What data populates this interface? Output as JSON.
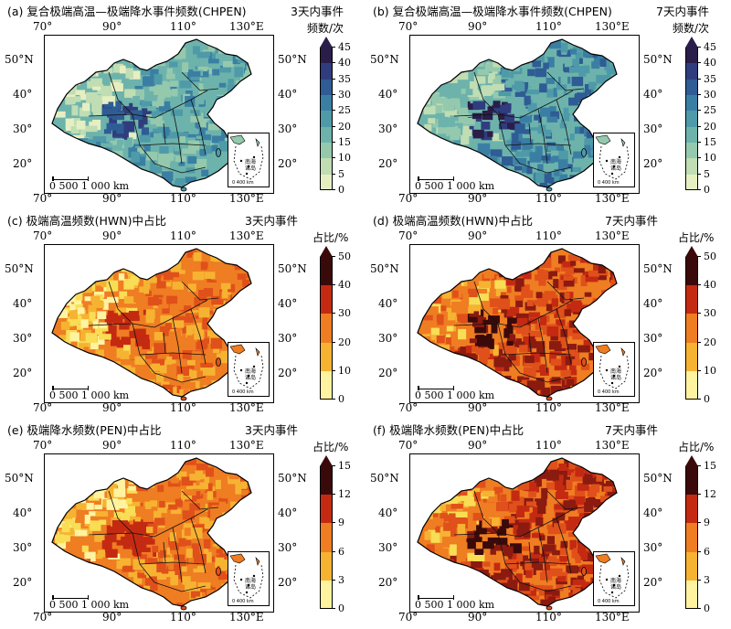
{
  "panels": [
    {
      "id": "a",
      "title": "(a) 复合极端高温—极端降水事件频数(CHPEN)",
      "event": "3天内事件",
      "unit": "频数/次",
      "ticks": [
        "45",
        "40",
        "35",
        "30",
        "25",
        "20",
        "15",
        "10",
        "5",
        "0"
      ],
      "scheme": "blue",
      "variant": 1
    },
    {
      "id": "b",
      "title": "(b) 复合极端高温—极端降水事件频数(CHPEN)",
      "event": "7天内事件",
      "unit": "频数/次",
      "ticks": [
        "45",
        "40",
        "35",
        "30",
        "25",
        "20",
        "15",
        "10",
        "5",
        "0"
      ],
      "scheme": "blue",
      "variant": 2
    },
    {
      "id": "c",
      "title": "(c) 极端高温频数(HWN)中占比",
      "event": "3天内事件",
      "unit": "占比/%",
      "ticks": [
        "50",
        "40",
        "30",
        "20",
        "10",
        "0"
      ],
      "scheme": "heat",
      "variant": 1
    },
    {
      "id": "d",
      "title": "(d) 极端高温频数(HWN)中占比",
      "event": "7天内事件",
      "unit": "占比/%",
      "ticks": [
        "50",
        "40",
        "30",
        "20",
        "10",
        "0"
      ],
      "scheme": "heat",
      "variant": 2
    },
    {
      "id": "e",
      "title": "(e) 极端降水频数(PEN)中占比",
      "event": "3天内事件",
      "unit": "占比/%",
      "ticks": [
        "15",
        "12",
        "9",
        "6",
        "3",
        "0"
      ],
      "scheme": "heat",
      "variant": 1
    },
    {
      "id": "f",
      "title": "(f) 极端降水频数(PEN)中占比",
      "event": "7天内事件",
      "unit": "占比/%",
      "ticks": [
        "15",
        "12",
        "9",
        "6",
        "3",
        "0"
      ],
      "scheme": "heat",
      "variant": 2
    }
  ],
  "lon_labels": [
    "70°",
    "90°",
    "110°",
    "130°E"
  ],
  "lat_labels": [
    "50°N",
    "40°",
    "30°",
    "20°"
  ],
  "scale_label": "0  500 1 000 km",
  "inset_label": "南海\n诸岛",
  "inset_scale": "0 400 km",
  "colors": {
    "blue": [
      "#2b1d4a",
      "#2f3d7e",
      "#2f5c94",
      "#3a7fa3",
      "#4f9aa8",
      "#6db3ac",
      "#95c9ad",
      "#c0ddb3",
      "#e6efc2"
    ],
    "heat": [
      "#3a0a0a",
      "#8b1a10",
      "#c42a12",
      "#e0501a",
      "#ef7d22",
      "#f6b332",
      "#f9dd55",
      "#fff3a0"
    ]
  }
}
